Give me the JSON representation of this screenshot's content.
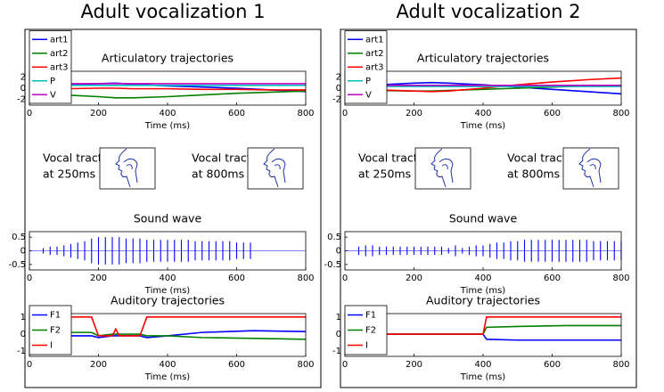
{
  "panels": [
    {
      "title": "Adult vocalization 1",
      "vocal_tract_labels": [
        [
          "Vocal tract",
          "at 250ms"
        ],
        [
          "Vocal tract",
          "at 800ms"
        ]
      ]
    },
    {
      "title": "Adult vocalization 2",
      "vocal_tract_labels": [
        [
          "Vocal tract",
          "at 250ms"
        ],
        [
          "Vocal tract",
          "at 800ms"
        ]
      ]
    }
  ],
  "chart_data": [
    {
      "type": "line",
      "title": "Articulatory trajectories",
      "xlabel": "Time (ms)",
      "x": [
        0,
        100,
        200,
        250,
        300,
        400,
        500,
        600,
        700,
        800
      ],
      "series": [
        {
          "name": "art1",
          "color": "#0000ff",
          "values": [
            0.4,
            0.6,
            0.8,
            0.9,
            0.7,
            0.4,
            0.2,
            0,
            -0.3,
            -0.6
          ]
        },
        {
          "name": "art2",
          "color": "#007f00",
          "values": [
            -0.9,
            -1.2,
            -1.5,
            -1.7,
            -1.7,
            -1.5,
            -1.2,
            -0.9,
            -0.7,
            -0.5
          ]
        },
        {
          "name": "art3",
          "color": "#ff0000",
          "values": [
            -0.2,
            -0.1,
            0,
            0,
            -0.1,
            -0.1,
            -0.2,
            -0.2,
            -0.3,
            -0.3
          ]
        },
        {
          "name": "P",
          "color": "#00bfbf",
          "values": [
            0.5,
            0.5,
            0.5,
            0.5,
            0.5,
            0.5,
            0.5,
            0.5,
            0.5,
            0.5
          ]
        },
        {
          "name": "V",
          "color": "#bf00bf",
          "values": [
            0.8,
            0.8,
            0.8,
            0.8,
            0.8,
            0.8,
            0.8,
            0.8,
            0.8,
            0.8
          ]
        }
      ],
      "xlim": [
        0,
        800
      ],
      "xticks": [
        0,
        200,
        400,
        600,
        800
      ],
      "ylim": [
        -3,
        3
      ],
      "yticks": [
        -2,
        0,
        2
      ],
      "legend": "lower left"
    },
    {
      "type": "waveform",
      "title": "Sound wave",
      "xlabel": "Time (ms)",
      "color": "#0000ff",
      "x": [
        40,
        60,
        80,
        100,
        120,
        140,
        160,
        180,
        200,
        220,
        240,
        260,
        280,
        300,
        320,
        340,
        360,
        380,
        400,
        420,
        440,
        460,
        480,
        500,
        520,
        540,
        560,
        580,
        600,
        620,
        640
      ],
      "values": [
        0.1,
        0.15,
        0.15,
        0.2,
        0.25,
        0.3,
        0.35,
        0.45,
        0.5,
        0.5,
        0.5,
        0.5,
        0.45,
        0.45,
        0.45,
        0.4,
        0.4,
        0.4,
        0.4,
        0.4,
        0.4,
        0.4,
        0.35,
        0.35,
        0.35,
        0.35,
        0.35,
        0.35,
        0.3,
        0.3,
        0.3
      ],
      "xlim": [
        0,
        800
      ],
      "xticks": [
        0,
        200,
        400,
        600,
        800
      ],
      "ylim": [
        -0.7,
        0.7
      ],
      "yticks": [
        0.5,
        0,
        -0.5
      ]
    },
    {
      "type": "line",
      "title": "Auditory trajectories",
      "xlabel": "Time (ms)",
      "x": [
        0,
        10,
        180,
        200,
        240,
        250,
        260,
        320,
        340,
        400,
        500,
        650,
        800
      ],
      "series": [
        {
          "name": "F1",
          "color": "#0000ff",
          "values": [
            0,
            -0.1,
            -0.1,
            -0.2,
            -0.1,
            -0.1,
            -0.1,
            -0.1,
            -0.2,
            -0.1,
            0.1,
            0.2,
            0.15
          ]
        },
        {
          "name": "F2",
          "color": "#007f00",
          "values": [
            0,
            0.1,
            0.1,
            -0.1,
            0,
            0,
            0,
            0,
            -0.1,
            -0.1,
            -0.2,
            -0.25,
            -0.3
          ]
        },
        {
          "name": "I",
          "color": "#ff0000",
          "values": [
            0,
            1,
            1,
            -0.1,
            -0.1,
            0.3,
            -0.1,
            -0.1,
            1,
            1,
            1,
            1,
            1
          ]
        }
      ],
      "xlim": [
        0,
        800
      ],
      "xticks": [
        0,
        200,
        400,
        600,
        800
      ],
      "ylim": [
        -1.3,
        1.2
      ],
      "yticks": [
        1,
        0,
        -1
      ],
      "legend": "lower left"
    },
    {
      "type": "line",
      "title": "Articulatory trajectories",
      "xlabel": "Time (ms)",
      "x": [
        0,
        100,
        200,
        250,
        300,
        400,
        500,
        600,
        700,
        800
      ],
      "series": [
        {
          "name": "art1",
          "color": "#0000ff",
          "values": [
            0.3,
            0.6,
            0.9,
            1.0,
            0.9,
            0.6,
            0.2,
            -0.2,
            -0.6,
            -1.0
          ]
        },
        {
          "name": "art2",
          "color": "#007f00",
          "values": [
            -0.3,
            -0.4,
            -0.5,
            -0.5,
            -0.4,
            -0.2,
            0,
            0.2,
            0.4,
            0.5
          ]
        },
        {
          "name": "art3",
          "color": "#ff0000",
          "values": [
            -0.2,
            -0.3,
            -0.5,
            -0.6,
            -0.5,
            0,
            0.6,
            1.1,
            1.5,
            1.8
          ]
        },
        {
          "name": "P",
          "color": "#00bfbf",
          "values": [
            0.3,
            0.3,
            0.3,
            0.3,
            0.3,
            0.3,
            0.3,
            0.3,
            0.3,
            0.3
          ]
        },
        {
          "name": "V",
          "color": "#bf00bf",
          "values": [
            0.5,
            0.5,
            0.5,
            0.5,
            0.5,
            0.5,
            0.5,
            0.5,
            0.5,
            0.5
          ]
        }
      ],
      "xlim": [
        0,
        800
      ],
      "xticks": [
        0,
        200,
        400,
        600,
        800
      ],
      "ylim": [
        -3,
        3
      ],
      "yticks": [
        -2,
        0,
        2
      ],
      "legend": "lower left"
    },
    {
      "type": "waveform",
      "title": "Sound wave",
      "xlabel": "Time (ms)",
      "color": "#0000ff",
      "x": [
        40,
        60,
        80,
        100,
        120,
        140,
        160,
        180,
        200,
        220,
        240,
        260,
        280,
        300,
        320,
        340,
        360,
        380,
        400,
        420,
        440,
        460,
        480,
        500,
        520,
        540,
        560,
        580,
        600,
        620,
        640,
        660,
        680,
        700,
        720,
        740,
        760,
        780,
        800
      ],
      "values": [
        0.15,
        0.2,
        0.2,
        0.15,
        0.15,
        0.15,
        0.15,
        0.15,
        0.15,
        0.15,
        0.15,
        0.15,
        0.15,
        0.1,
        0.2,
        0.1,
        0.15,
        0.2,
        0.2,
        0.25,
        0.3,
        0.3,
        0.35,
        0.35,
        0.4,
        0.4,
        0.4,
        0.4,
        0.4,
        0.4,
        0.4,
        0.4,
        0.4,
        0.4,
        0.35,
        0.35,
        0.35,
        0.35,
        0.35
      ],
      "xlim": [
        0,
        800
      ],
      "xticks": [
        0,
        200,
        400,
        600,
        800
      ],
      "ylim": [
        -0.7,
        0.7
      ],
      "yticks": [
        0.5,
        0,
        -0.5
      ]
    },
    {
      "type": "line",
      "title": "Auditory trajectories",
      "xlabel": "Time (ms)",
      "x": [
        0,
        250,
        400,
        410,
        500,
        650,
        800
      ],
      "series": [
        {
          "name": "F1",
          "color": "#0000ff",
          "values": [
            0,
            0,
            0,
            -0.3,
            -0.35,
            -0.35,
            -0.35
          ]
        },
        {
          "name": "F2",
          "color": "#007f00",
          "values": [
            0,
            0,
            0,
            0.4,
            0.45,
            0.5,
            0.5
          ]
        },
        {
          "name": "I",
          "color": "#ff0000",
          "values": [
            0,
            0,
            0,
            1,
            1,
            1,
            1
          ]
        }
      ],
      "xlim": [
        0,
        800
      ],
      "xticks": [
        0,
        200,
        400,
        600,
        800
      ],
      "ylim": [
        -1.3,
        1.2
      ],
      "yticks": [
        1,
        0,
        -1
      ],
      "legend": "lower left"
    }
  ]
}
